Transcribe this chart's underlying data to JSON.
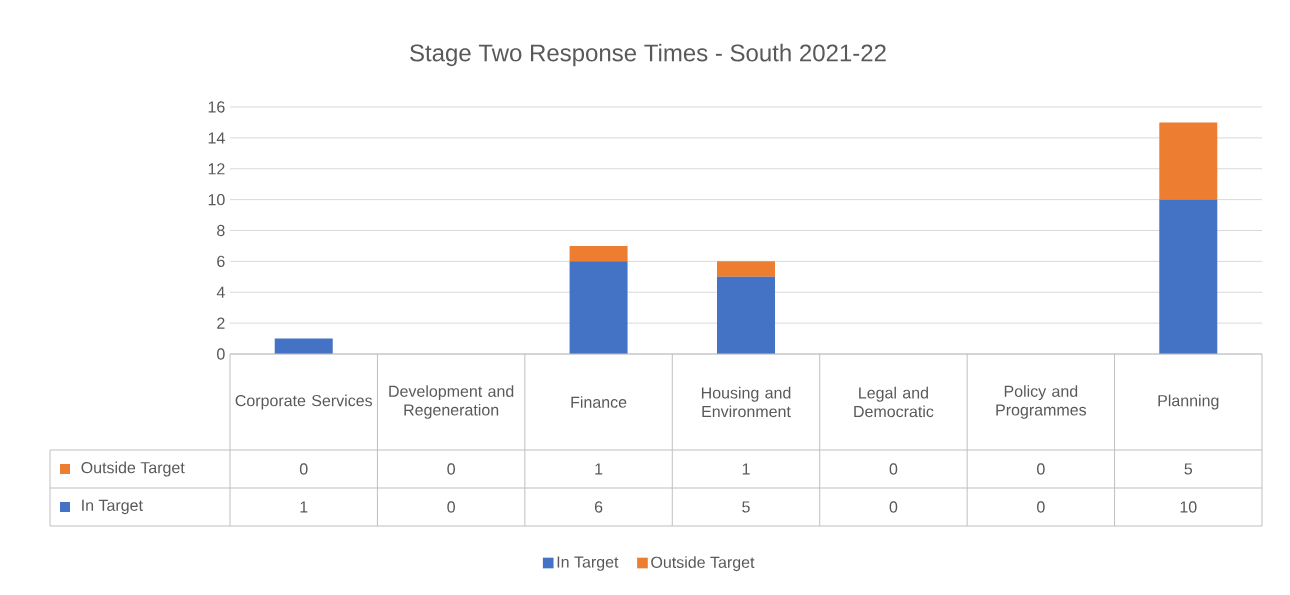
{
  "chart_data": {
    "type": "bar",
    "title": "Stage Two Response Times - South 2021-22",
    "categories": [
      "Corporate Services",
      "Development and Regeneration",
      "Finance",
      "Housing and Environment",
      "Legal and Democratic",
      "Policy and Programmes",
      "Planning"
    ],
    "series": [
      {
        "name": "In Target",
        "color": "#4472c4",
        "values": [
          1,
          0,
          6,
          5,
          0,
          0,
          10
        ]
      },
      {
        "name": "Outside Target",
        "color": "#ed7d31",
        "values": [
          0,
          0,
          1,
          1,
          0,
          0,
          5
        ]
      }
    ],
    "stacked": true,
    "ylim": [
      0,
      16
    ],
    "yticks": [
      0,
      2,
      4,
      6,
      8,
      10,
      12,
      14,
      16
    ],
    "grid": "y",
    "legend": "bottom",
    "data_labels": true
  }
}
